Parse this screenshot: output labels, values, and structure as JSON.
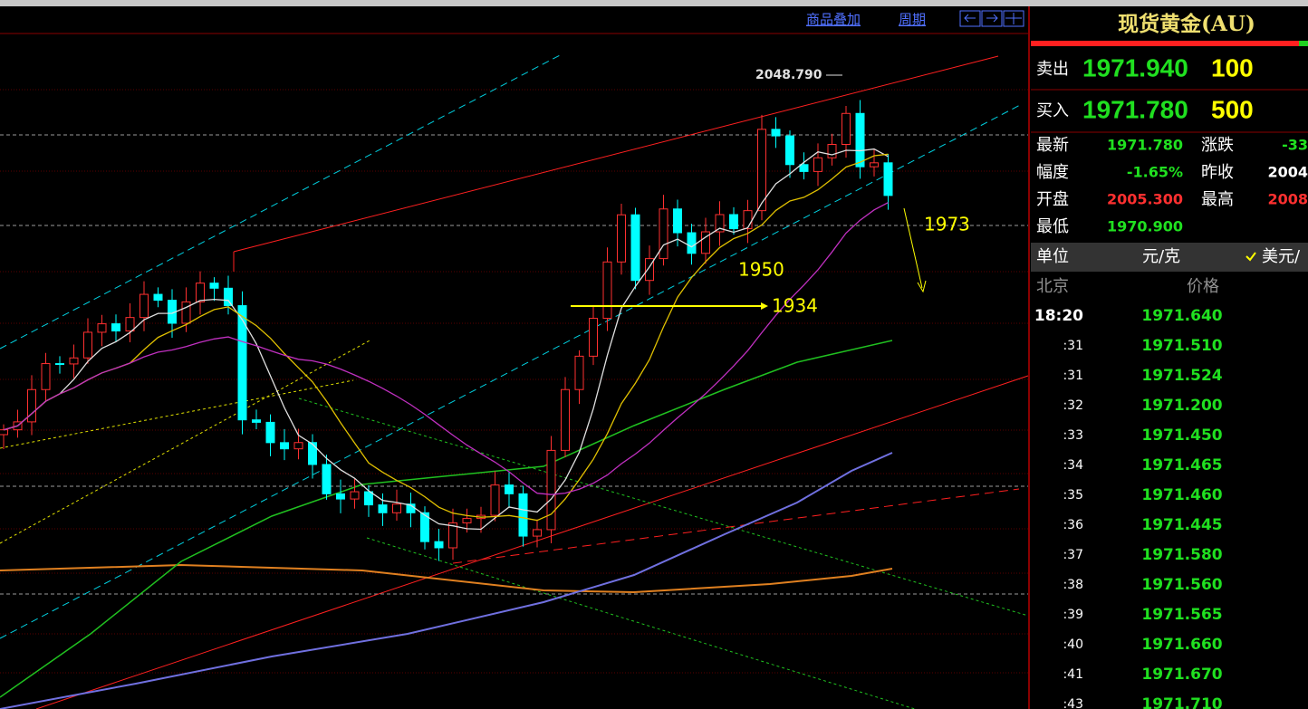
{
  "toolbar": {
    "overlay": "商品叠加",
    "period": "周期"
  },
  "chart": {
    "annotations": {
      "high": "2048.790",
      "right": "1973",
      "middle": "1950",
      "support": "1934"
    }
  },
  "quote": {
    "title": "现货黄金(AU)",
    "sell": {
      "label": "卖出",
      "price": "1971.940",
      "volume": "100"
    },
    "buy": {
      "label": "买入",
      "price": "1971.780",
      "volume": "500"
    },
    "stats": [
      [
        "最新",
        "1971.780",
        "涨跌",
        "-33"
      ],
      [
        "幅度",
        "-1.65%",
        "昨收",
        "2004"
      ],
      [
        "开盘",
        "2005.300",
        "最高",
        "2008"
      ],
      [
        "最低",
        "1970.900"
      ]
    ],
    "unit": {
      "label": "单位",
      "value": "元/克",
      "option": "美元/"
    },
    "ticks": {
      "header": [
        "北京",
        "价格"
      ],
      "rows": [
        [
          "18:20",
          "1971.640"
        ],
        [
          ":31",
          "1971.510"
        ],
        [
          ":31",
          "1971.524"
        ],
        [
          ":32",
          "1971.200"
        ],
        [
          ":33",
          "1971.450"
        ],
        [
          ":34",
          "1971.465"
        ],
        [
          ":35",
          "1971.460"
        ],
        [
          ":36",
          "1971.445"
        ],
        [
          ":37",
          "1971.580"
        ],
        [
          ":38",
          "1971.560"
        ],
        [
          ":39",
          "1971.565"
        ],
        [
          ":40",
          "1971.660"
        ],
        [
          ":41",
          "1971.670"
        ],
        [
          ":43",
          "1971.710"
        ]
      ]
    }
  }
}
